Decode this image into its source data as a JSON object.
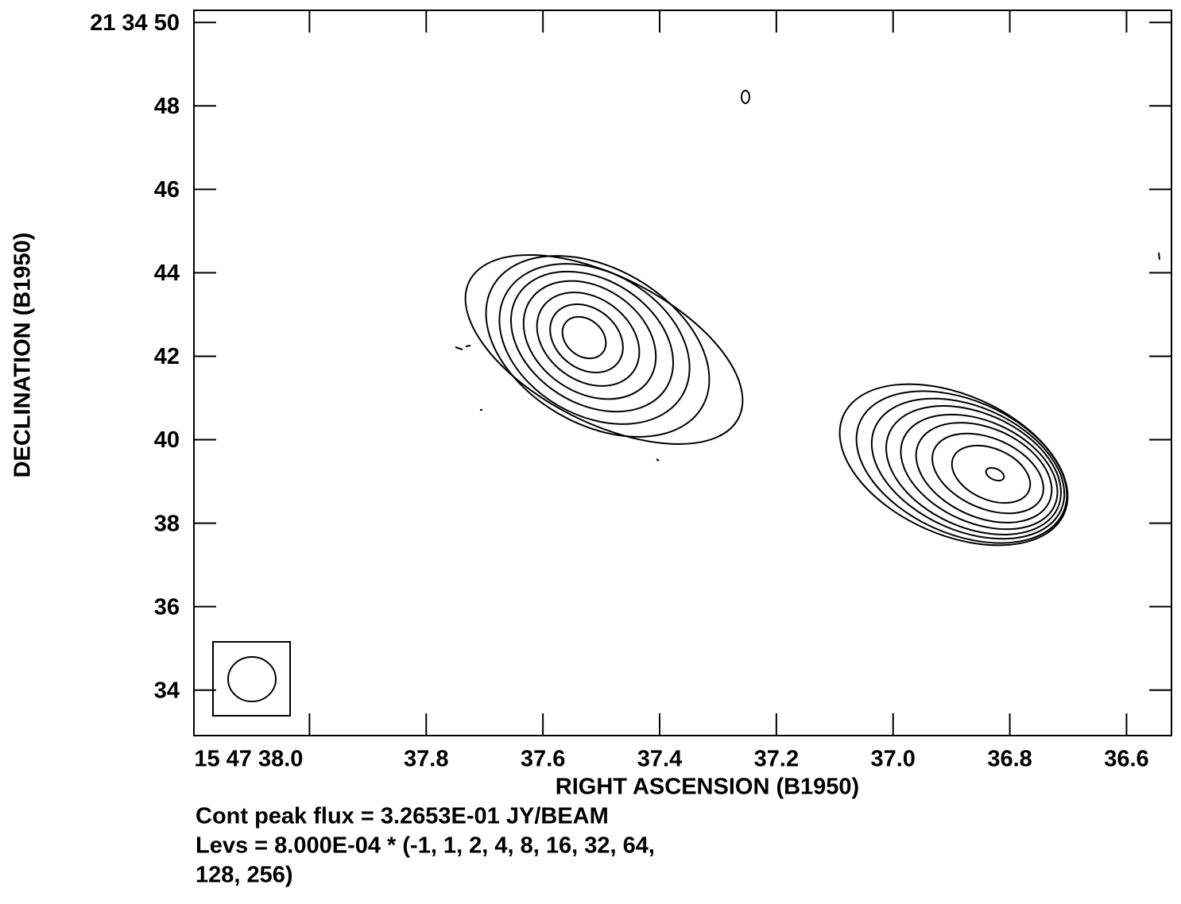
{
  "chart_data": {
    "type": "contour",
    "xlabel": "RIGHT ASCENSION (B1950)",
    "ylabel": "DECLINATION (B1950)",
    "xlim": [
      38.198,
      36.523
    ],
    "ylim": [
      32.91,
      50.29
    ],
    "xticks": [
      {
        "value": 38.0,
        "label": "15 47 38.0"
      },
      37.8,
      37.6,
      37.4,
      37.2,
      {
        "value": 37.0,
        "label": "37.0"
      },
      36.8,
      36.6
    ],
    "yticks": [
      34,
      36,
      38,
      40,
      42,
      44,
      46,
      48,
      {
        "value": 50,
        "label": "21 34 50"
      }
    ],
    "levels": [
      -1,
      1,
      2,
      4,
      8,
      16,
      32,
      64,
      128,
      256
    ],
    "annotations": [
      "Cont peak flux =  3.2653E-01 JY/BEAM",
      "Levs = 8.000E-04 * (-1, 1, 2, 4, 8, 16, 32, 64,",
      "128, 256)"
    ]
  }
}
